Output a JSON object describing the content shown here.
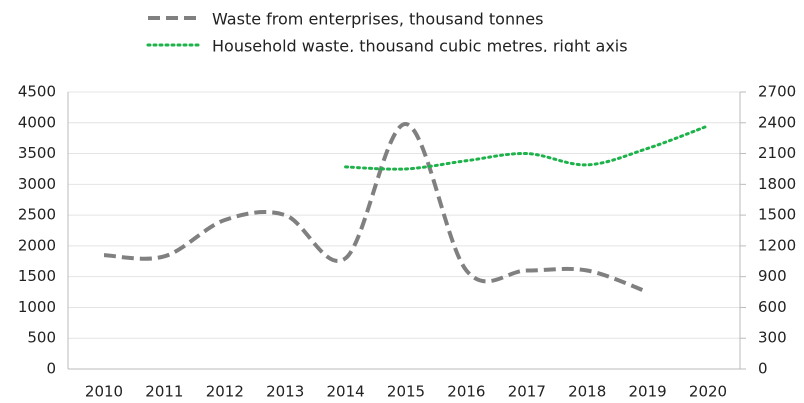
{
  "chart_data": {
    "type": "line",
    "categories": [
      "2010",
      "2011",
      "2012",
      "2013",
      "2014",
      "2015",
      "2016",
      "2017",
      "2018",
      "2019",
      "2020"
    ],
    "series": [
      {
        "name": "Waste from enterprises, thousand tonnes",
        "color": "#808080",
        "dash": "dashed",
        "values": [
          1850,
          1830,
          2420,
          2500,
          1800,
          3980,
          1600,
          1600,
          1600,
          1250,
          null
        ]
      },
      {
        "name": "Household waste, thousand cubic metres, right axis",
        "color": "#1db34a",
        "dash": "dotted",
        "axis": "y2",
        "values": [
          null,
          null,
          null,
          null,
          1970,
          1950,
          2030,
          2100,
          1990,
          2150,
          2370
        ]
      }
    ],
    "ylim": [
      0,
      4500
    ],
    "yticks": [
      0,
      500,
      1000,
      1500,
      2000,
      2500,
      3000,
      3500,
      4000,
      4500
    ],
    "y2lim": [
      0,
      2700
    ],
    "y2ticks": [
      0,
      300,
      600,
      900,
      1200,
      1500,
      1800,
      2100,
      2400,
      2700
    ],
    "grid": true,
    "legend": "top",
    "smooth": true
  }
}
